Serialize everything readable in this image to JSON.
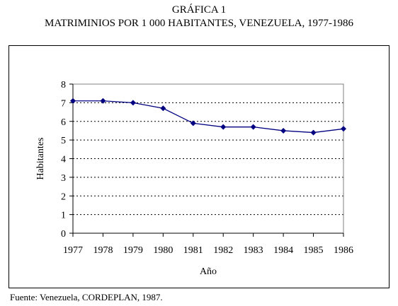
{
  "figure": {
    "title": "GRÁFICA 1",
    "subtitle": "MATRIMINIOS POR 1 000 HABITANTES, VENEZUELA, 1977-1986",
    "source": "Fuente: Venezuela, CORDEPLAN, 1987."
  },
  "chart_data": {
    "type": "line",
    "title": "MATRIMINIOS POR 1 000 HABITANTES, VENEZUELA, 1977-1986",
    "xlabel": "Año",
    "ylabel": "Habitantes",
    "x": [
      "1977",
      "1978",
      "1979",
      "1980",
      "1981",
      "1982",
      "1983",
      "1984",
      "1985",
      "1986"
    ],
    "ylim": [
      0,
      8
    ],
    "yticks": [
      "0",
      "1",
      "2",
      "3",
      "4",
      "5",
      "6",
      "7",
      "8"
    ],
    "grid": "horizontal dotted",
    "series": [
      {
        "values": [
          7.1,
          7.1,
          7.0,
          6.7,
          5.9,
          5.7,
          5.7,
          5.5,
          5.4,
          5.6
        ],
        "color": "#000080",
        "marker": "diamond"
      }
    ]
  }
}
